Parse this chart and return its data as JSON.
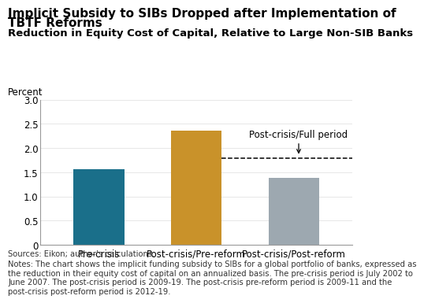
{
  "title_line1": "Implicit Subsidy to SIBs Dropped after Implementation of",
  "title_line2": "TBTF Reforms",
  "subtitle": "Reduction in Equity Cost of Capital, Relative to Large Non-SIB Banks",
  "ylabel": "Percent",
  "categories": [
    "Pre-crisis",
    "Post-crisis/Pre-reform",
    "Post-crisis/Post-reform"
  ],
  "values": [
    1.57,
    2.36,
    1.38
  ],
  "bar_colors": [
    "#1a6f8a",
    "#c9922a",
    "#9da8b0"
  ],
  "dashed_line_y": 1.79,
  "annotation_text": "Post-crisis/Full period",
  "ylim": [
    0,
    3.0
  ],
  "yticks": [
    0,
    0.5,
    1.0,
    1.5,
    2.0,
    2.5,
    3.0
  ],
  "sources_text": "Sources: Eikon; author’s calculations.",
  "notes_text": "Notes: The chart shows the implicit funding subsidy to SIBs for a global portfolio of banks, expressed as\nthe reduction in their equity cost of capital on an annualized basis. The pre-crisis period is July 2002 to\nJune 2007. The post-crisis period is 2009-19. The post-crisis pre-reform period is 2009-11 and the\npost-crisis post-reform period is 2012-19.",
  "title_fontsize": 11,
  "subtitle_fontsize": 9.5,
  "label_fontsize": 8.5,
  "tick_fontsize": 8.5,
  "notes_fontsize": 7.2,
  "background_color": "#ffffff"
}
